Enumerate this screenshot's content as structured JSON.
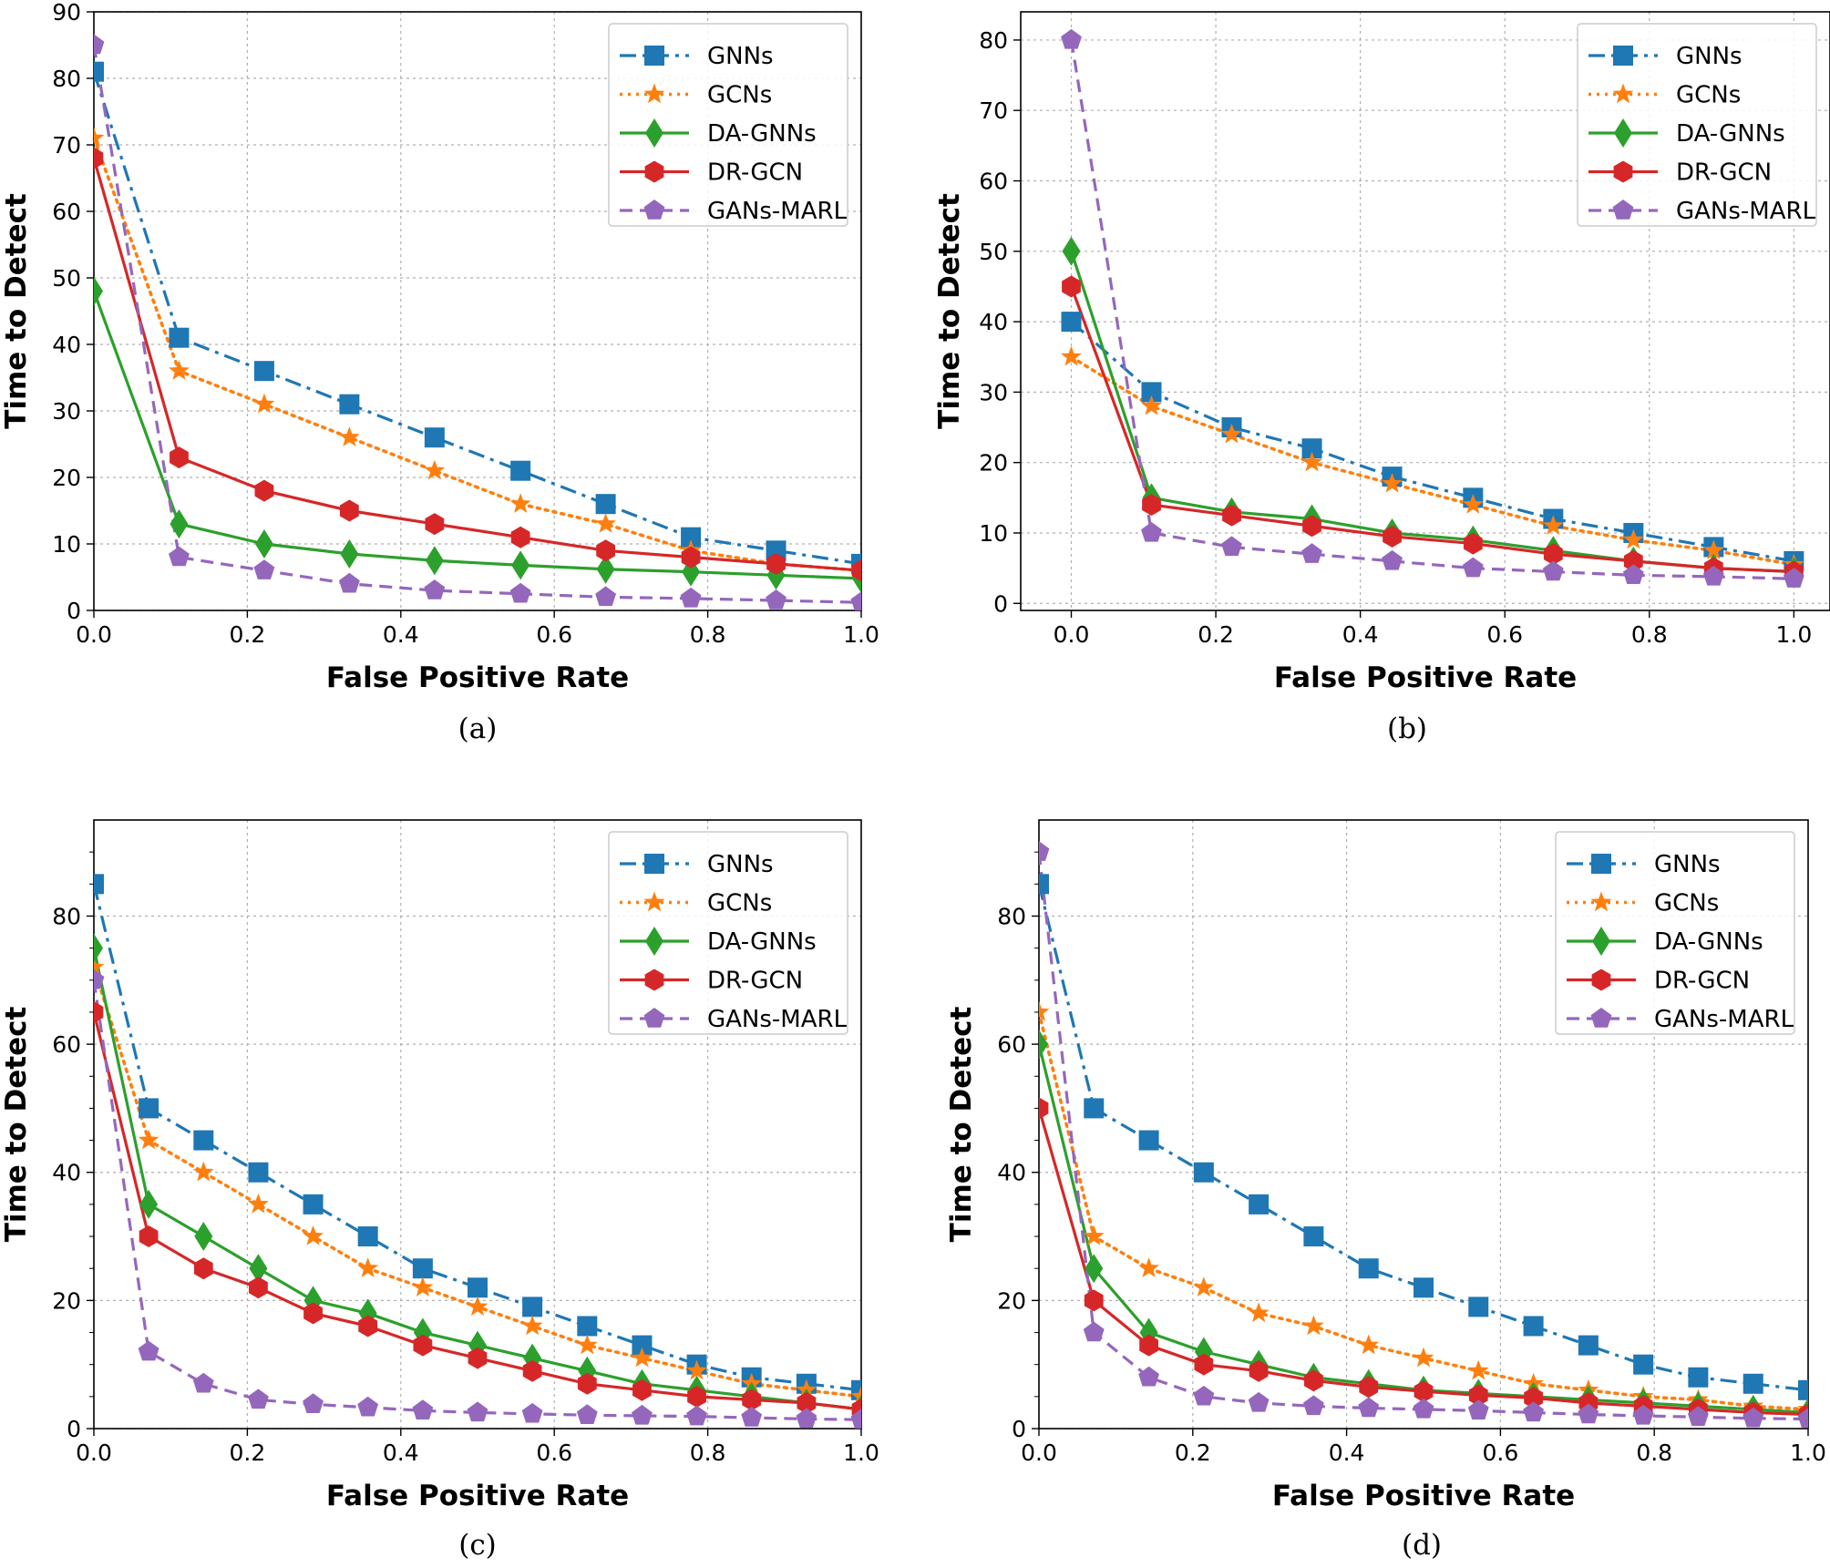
{
  "colors": {
    "GNNs": "#1f77b4",
    "GCNs": "#ff7f0e",
    "DA-GNNs": "#2ca02c",
    "DR-GCN": "#d62728",
    "GANs-MARL": "#9467bd"
  },
  "chart_data": [
    {
      "type": "line",
      "caption": "(a)",
      "xlabel": "False Positive Rate",
      "ylabel": "Time to Detect",
      "xlim": [
        0,
        1.0
      ],
      "ylim": [
        0,
        90
      ],
      "xticks": [
        "0.0",
        "0.2",
        "0.4",
        "0.6",
        "0.8",
        "1.0"
      ],
      "yticks": [
        "0",
        "10",
        "20",
        "30",
        "40",
        "50",
        "60",
        "70",
        "80",
        "90"
      ],
      "grid": true,
      "legend": "top-right",
      "x": [
        0,
        0.111,
        0.222,
        0.333,
        0.444,
        0.556,
        0.667,
        0.778,
        0.889,
        1.0
      ],
      "series": [
        {
          "name": "GNNs",
          "values": [
            81,
            41,
            36,
            31,
            26,
            21,
            16,
            11,
            9,
            7
          ]
        },
        {
          "name": "GCNs",
          "values": [
            71,
            36,
            31,
            26,
            21,
            16,
            13,
            9,
            7,
            6
          ]
        },
        {
          "name": "DA-GNNs",
          "values": [
            48,
            13,
            10,
            8.5,
            7.5,
            6.8,
            6.2,
            5.8,
            5.3,
            4.8
          ]
        },
        {
          "name": "DR-GCN",
          "values": [
            68,
            23,
            18,
            15,
            13,
            11,
            9,
            8,
            7,
            6
          ]
        },
        {
          "name": "GANs-MARL",
          "values": [
            85,
            8,
            6,
            4,
            3,
            2.5,
            2,
            1.8,
            1.5,
            1.2
          ]
        }
      ]
    },
    {
      "type": "line",
      "caption": "(b)",
      "xlabel": "False Positive Rate",
      "ylabel": "Time to Detect",
      "xlim": [
        -0.07,
        1.05
      ],
      "ylim": [
        -1,
        84
      ],
      "xticks": [
        "0.0",
        "0.2",
        "0.4",
        "0.6",
        "0.8",
        "1.0"
      ],
      "yticks": [
        "0",
        "10",
        "20",
        "30",
        "40",
        "50",
        "60",
        "70",
        "80"
      ],
      "grid": true,
      "legend": "top-right",
      "x": [
        0,
        0.111,
        0.222,
        0.333,
        0.444,
        0.556,
        0.667,
        0.778,
        0.889,
        1.0
      ],
      "series": [
        {
          "name": "GNNs",
          "values": [
            40,
            30,
            25,
            22,
            18,
            15,
            12,
            10,
            8,
            6
          ]
        },
        {
          "name": "GCNs",
          "values": [
            35,
            28,
            24,
            20,
            17,
            14,
            11,
            9,
            7.5,
            5.5
          ]
        },
        {
          "name": "DA-GNNs",
          "values": [
            50,
            15,
            13,
            12,
            10,
            9,
            7.5,
            6,
            5,
            4.5
          ]
        },
        {
          "name": "DR-GCN",
          "values": [
            45,
            14,
            12.5,
            11,
            9.5,
            8.5,
            7,
            6,
            5,
            4.5
          ]
        },
        {
          "name": "GANs-MARL",
          "values": [
            80,
            10,
            8,
            7,
            6,
            5,
            4.5,
            4,
            3.8,
            3.5
          ]
        }
      ]
    },
    {
      "type": "line",
      "caption": "(c)",
      "xlabel": "False Positive Rate",
      "ylabel": "Time to Detect",
      "xlim": [
        0,
        1.0
      ],
      "ylim": [
        0,
        95
      ],
      "xticks": [
        "0.0",
        "0.2",
        "0.4",
        "0.6",
        "0.8",
        "1.0"
      ],
      "yticks": [
        "0",
        "20",
        "40",
        "60",
        "80"
      ],
      "grid": true,
      "legend": "top-right",
      "x": [
        0,
        0.0714,
        0.1429,
        0.2143,
        0.2857,
        0.3571,
        0.4286,
        0.5,
        0.5714,
        0.6429,
        0.7143,
        0.7857,
        0.8571,
        0.9286,
        1.0
      ],
      "series": [
        {
          "name": "GNNs",
          "values": [
            85,
            50,
            45,
            40,
            35,
            30,
            25,
            22,
            19,
            16,
            13,
            10,
            8,
            7,
            6
          ]
        },
        {
          "name": "GCNs",
          "values": [
            72,
            45,
            40,
            35,
            30,
            25,
            22,
            19,
            16,
            13,
            11,
            9,
            7,
            6,
            5
          ]
        },
        {
          "name": "DA-GNNs",
          "values": [
            75,
            35,
            30,
            25,
            20,
            18,
            15,
            13,
            11,
            9,
            7,
            6,
            5,
            4,
            3
          ]
        },
        {
          "name": "DR-GCN",
          "values": [
            65,
            30,
            25,
            22,
            18,
            16,
            13,
            11,
            9,
            7,
            6,
            5,
            4.5,
            4,
            3
          ]
        },
        {
          "name": "GANs-MARL",
          "values": [
            70,
            12,
            7,
            4.5,
            3.8,
            3.3,
            2.8,
            2.5,
            2.3,
            2.1,
            2,
            1.9,
            1.7,
            1.5,
            1.4
          ]
        }
      ]
    },
    {
      "type": "line",
      "caption": "(d)",
      "xlabel": "False Positive Rate",
      "ylabel": "Time to Detect",
      "xlim": [
        0,
        1.0
      ],
      "ylim": [
        0,
        95
      ],
      "xticks": [
        "0.0",
        "0.2",
        "0.4",
        "0.6",
        "0.8",
        "1.0"
      ],
      "yticks": [
        "0",
        "20",
        "40",
        "60",
        "80"
      ],
      "grid": true,
      "legend": "top-right",
      "x": [
        0,
        0.0714,
        0.1429,
        0.2143,
        0.2857,
        0.3571,
        0.4286,
        0.5,
        0.5714,
        0.6429,
        0.7143,
        0.7857,
        0.8571,
        0.9286,
        1.0
      ],
      "series": [
        {
          "name": "GNNs",
          "values": [
            85,
            50,
            45,
            40,
            35,
            30,
            25,
            22,
            19,
            16,
            13,
            10,
            8,
            7,
            6
          ]
        },
        {
          "name": "GCNs",
          "values": [
            65,
            30,
            25,
            22,
            18,
            16,
            13,
            11,
            9,
            7,
            6,
            5,
            4.5,
            3.5,
            3
          ]
        },
        {
          "name": "DA-GNNs",
          "values": [
            60,
            25,
            15,
            12,
            10,
            8,
            7,
            6,
            5.5,
            5,
            4.5,
            4,
            3.5,
            3,
            2.5
          ]
        },
        {
          "name": "DR-GCN",
          "values": [
            50,
            20,
            13,
            10,
            9,
            7.5,
            6.5,
            5.8,
            5.2,
            4.8,
            4,
            3.5,
            3,
            2.5,
            2.2
          ]
        },
        {
          "name": "GANs-MARL",
          "values": [
            90,
            15,
            8,
            5,
            4,
            3.5,
            3.2,
            3,
            2.8,
            2.5,
            2.2,
            2,
            1.8,
            1.6,
            1.5
          ]
        }
      ]
    }
  ]
}
